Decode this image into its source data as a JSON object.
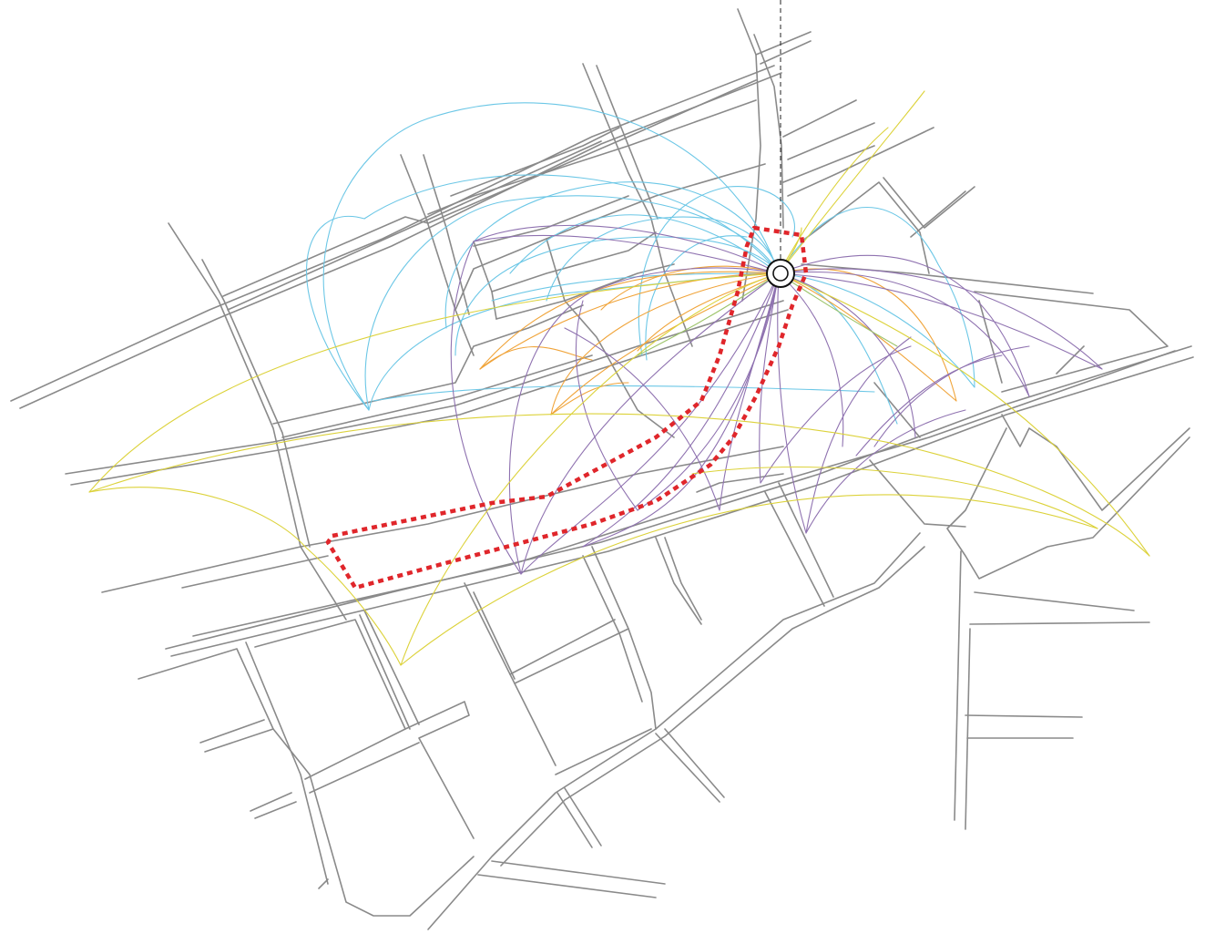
{
  "map": {
    "colors": {
      "background": "#ffffff",
      "streets": "#8a8a8a",
      "flow_cyan": "#6cc7e6",
      "flow_purple": "#8f72b0",
      "flow_orange": "#f0a43a",
      "flow_yellow": "#dcd23a",
      "flow_green": "#9cc46a",
      "site_boundary": "#e0262b",
      "landmark": "#111111"
    },
    "layers": [
      {
        "id": "street-network",
        "icon": "street-lines"
      },
      {
        "id": "flow-arcs-cyan",
        "icon": "curved-lines"
      },
      {
        "id": "flow-arcs-purple",
        "icon": "curved-lines"
      },
      {
        "id": "flow-arcs-orange",
        "icon": "curved-lines"
      },
      {
        "id": "flow-arcs-yellow",
        "icon": "curved-lines"
      },
      {
        "id": "site-boundary",
        "icon": "dotted-outline"
      },
      {
        "id": "focal-node",
        "icon": "double-circle-marker"
      }
    ]
  }
}
